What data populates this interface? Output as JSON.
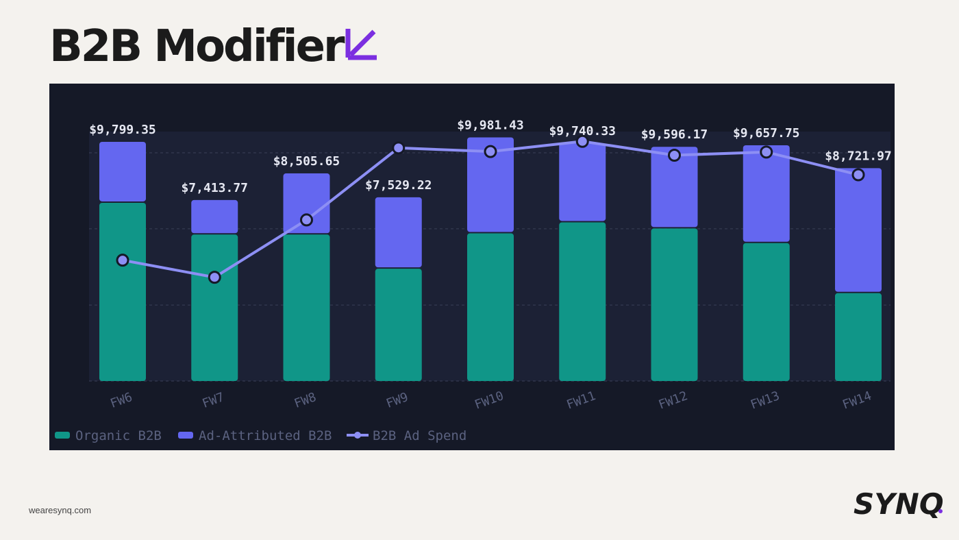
{
  "page": {
    "title": "B2B Modifier",
    "footer_url": "wearesynq.com",
    "brand_name": "SYNQ"
  },
  "colors": {
    "organic": "#109688",
    "ad_attributed": "#6467f0",
    "ad_spend": "#8d8ff4",
    "accent": "#7b2fe0",
    "panel_bg": "#151927"
  },
  "chart_data": {
    "type": "bar",
    "stacked": true,
    "title": "",
    "xlabel": "",
    "ylabel": "",
    "categories": [
      "FW6",
      "FW7",
      "FW8",
      "FW9",
      "FW10",
      "FW11",
      "FW12",
      "FW13",
      "FW14"
    ],
    "totals_labels": [
      "$9,799.35",
      "$7,413.77",
      "$8,505.65",
      "$7,529.22",
      "$9,981.43",
      "$9,740.33",
      "$9,596.17",
      "$9,657.75",
      "$8,721.97"
    ],
    "series": [
      {
        "name": "Organic B2B",
        "type": "bar",
        "values": [
          7300,
          6000,
          6000,
          4600,
          6050,
          6500,
          6250,
          5650,
          3600
        ]
      },
      {
        "name": "Ad-Attributed B2B",
        "type": "bar",
        "values": [
          2499.35,
          1413.77,
          2505.65,
          2929.22,
          3931.43,
          3240.33,
          3346.17,
          4007.75,
          5121.97
        ]
      },
      {
        "name": "B2B Ad Spend",
        "type": "line",
        "values": [
          4950,
          4250,
          6600,
          9550,
          9400,
          9820,
          9250,
          9380,
          8450
        ]
      }
    ],
    "ylim": [
      0,
      10500
    ],
    "grid": true,
    "legend_position": "bottom-left"
  }
}
